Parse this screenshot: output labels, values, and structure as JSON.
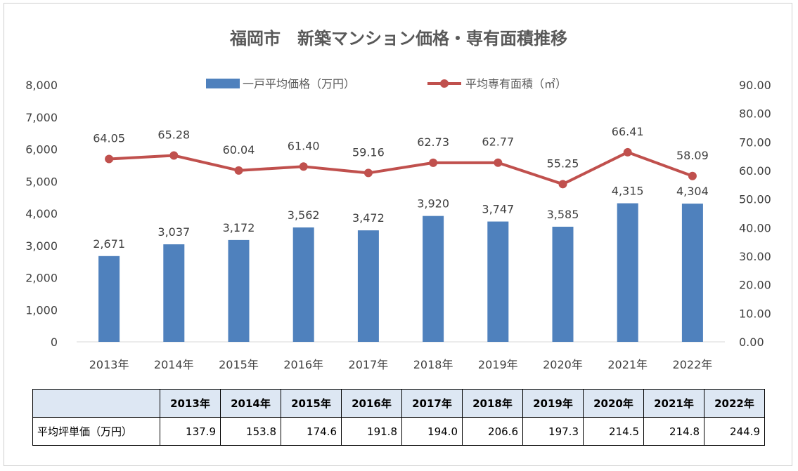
{
  "chart_data": {
    "type": "bar+line",
    "title": "福岡市　新築マンション価格・専有面積推移",
    "categories": [
      "2013年",
      "2014年",
      "2015年",
      "2016年",
      "2017年",
      "2018年",
      "2019年",
      "2020年",
      "2021年",
      "2022年"
    ],
    "series": [
      {
        "name": "一戸平均価格（万円）",
        "type": "bar",
        "axis": "left",
        "color": "#4f81bd",
        "values": [
          2671,
          3037,
          3172,
          3562,
          3472,
          3920,
          3747,
          3585,
          4315,
          4304
        ],
        "labels": [
          "2,671",
          "3,037",
          "3,172",
          "3,562",
          "3,472",
          "3,920",
          "3,747",
          "3,585",
          "4,315",
          "4,304"
        ]
      },
      {
        "name": "平均専有面積（㎡）",
        "type": "line",
        "axis": "right",
        "color": "#c0504d",
        "values": [
          64.05,
          65.28,
          60.04,
          61.4,
          59.16,
          62.73,
          62.77,
          55.25,
          66.41,
          58.09
        ],
        "labels": [
          "64.05",
          "65.28",
          "60.04",
          "61.40",
          "59.16",
          "62.73",
          "62.77",
          "55.25",
          "66.41",
          "58.09"
        ]
      }
    ],
    "y_left": {
      "ylim": [
        0,
        8000
      ],
      "ticks": [
        "0",
        "1,000",
        "2,000",
        "3,000",
        "4,000",
        "5,000",
        "6,000",
        "7,000",
        "8,000"
      ]
    },
    "y_right": {
      "ylim": [
        0,
        90
      ],
      "ticks": [
        "0.00",
        "10.00",
        "20.00",
        "30.00",
        "40.00",
        "50.00",
        "60.00",
        "70.00",
        "80.00",
        "90.00"
      ]
    },
    "legend_position": "top",
    "grid": false
  },
  "table": {
    "headers": [
      "",
      "2013年",
      "2014年",
      "2015年",
      "2016年",
      "2017年",
      "2018年",
      "2019年",
      "2020年",
      "2021年",
      "2022年"
    ],
    "row_label": "平均坪単価（万円）",
    "values": [
      "137.9",
      "153.8",
      "174.6",
      "191.8",
      "194.0",
      "206.6",
      "197.3",
      "214.5",
      "214.8",
      "244.9"
    ]
  }
}
